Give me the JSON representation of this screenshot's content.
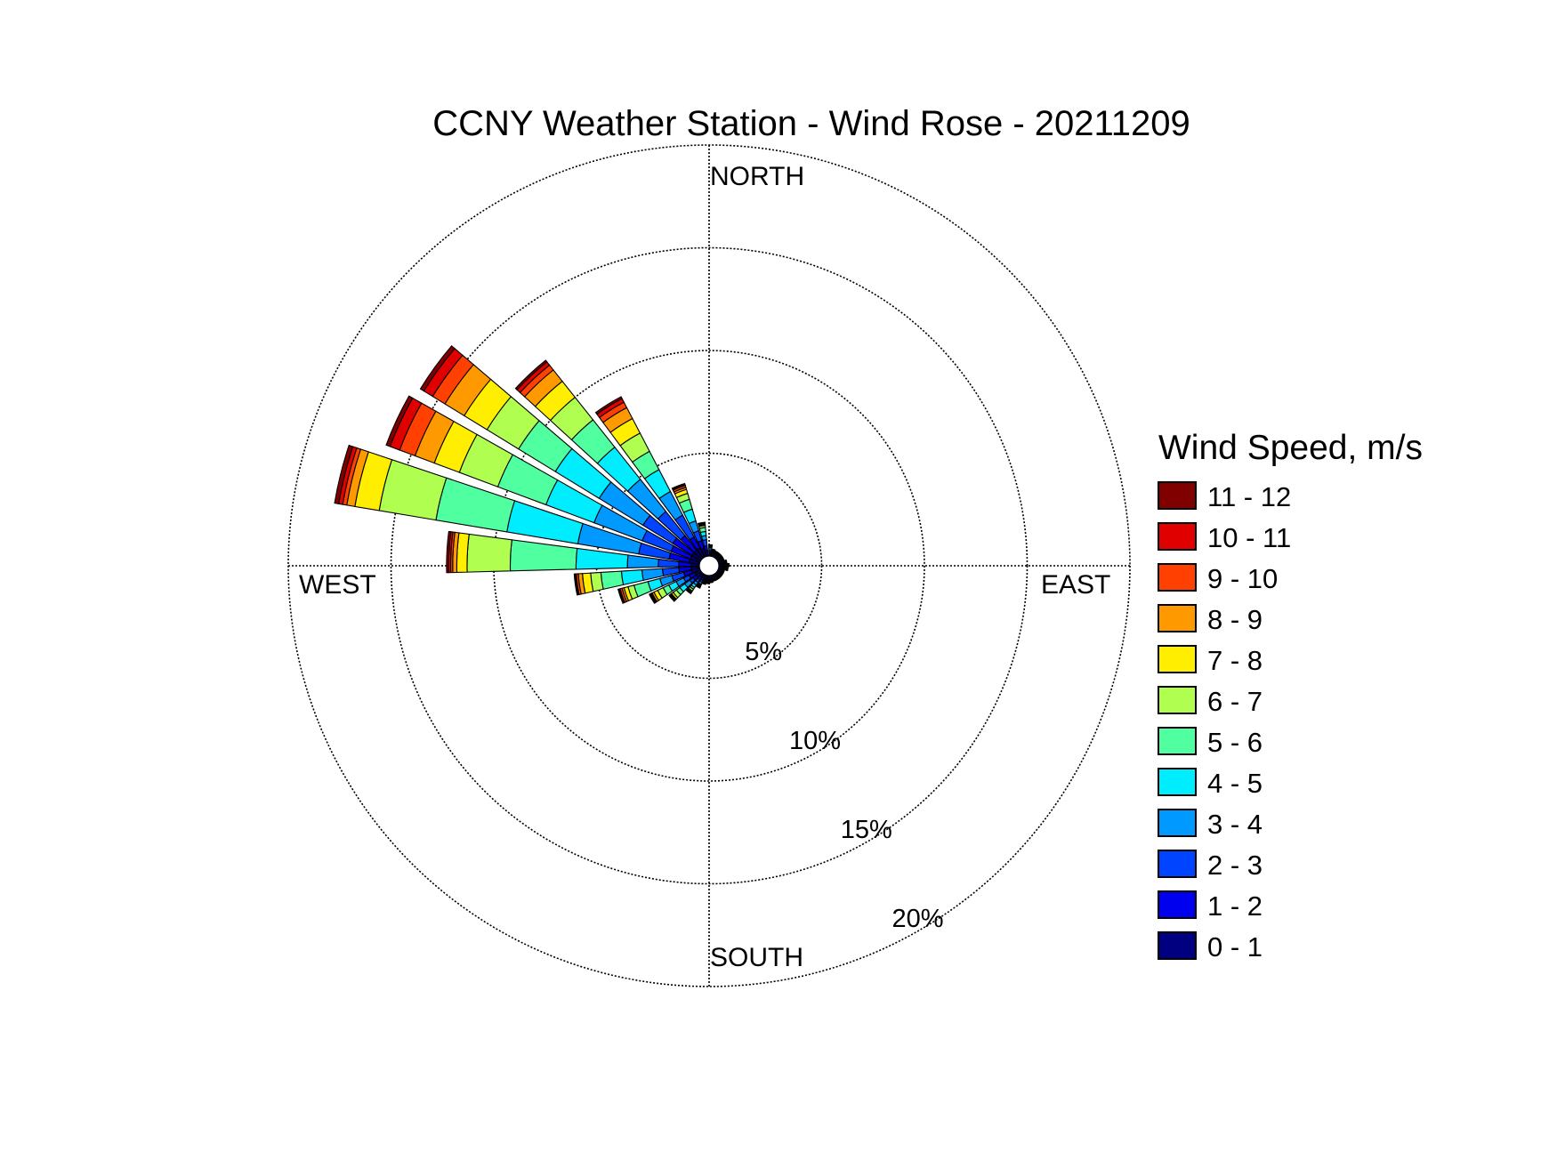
{
  "chart_data": {
    "type": "wind-rose",
    "title": "CCNY Weather Station - Wind Rose - 20211209",
    "directions": {
      "north": "NORTH",
      "south": "SOUTH",
      "east": "EAST",
      "west": "WEST"
    },
    "radial_unit": "percent of time",
    "rmax": 20,
    "rings": [
      {
        "value": 5,
        "label": "5%"
      },
      {
        "value": 10,
        "label": "10%"
      },
      {
        "value": 15,
        "label": "15%"
      },
      {
        "value": 20,
        "label": "20%"
      }
    ],
    "legend": {
      "title": "Wind Speed, m/s",
      "position": "right",
      "bins": [
        {
          "label": "11 - 12",
          "color": "#800000"
        },
        {
          "label": "10 - 11",
          "color": "#e00000"
        },
        {
          "label": "9 - 10",
          "color": "#ff4000"
        },
        {
          "label": "8 - 9",
          "color": "#ff9900"
        },
        {
          "label": "7 - 8",
          "color": "#ffee00"
        },
        {
          "label": "6 - 7",
          "color": "#b0ff50"
        },
        {
          "label": "5 - 6",
          "color": "#50ffa0"
        },
        {
          "label": "4 - 5",
          "color": "#00ecff"
        },
        {
          "label": "3 - 4",
          "color": "#0099ff"
        },
        {
          "label": "2 - 3",
          "color": "#0044ff"
        },
        {
          "label": "1 - 2",
          "color": "#0000ee"
        },
        {
          "label": "0 - 1",
          "color": "#000080"
        }
      ]
    },
    "sector_width_deg": 9,
    "speed_bins_low_to_high": [
      "0 - 1",
      "1 - 2",
      "2 - 3",
      "3 - 4",
      "4 - 5",
      "5 - 6",
      "6 - 7",
      "7 - 8",
      "8 - 9",
      "9 - 10",
      "10 - 11",
      "11 - 12"
    ],
    "sectors": [
      {
        "direction_deg": 306,
        "cumulative_percent": [
          0.5,
          1.6,
          3.3,
          5.8,
          8.3,
          10.4,
          12.2,
          13.5,
          14.6,
          15.3,
          15.8,
          16.0
        ]
      },
      {
        "direction_deg": 295,
        "cumulative_percent": [
          0.5,
          1.5,
          3.0,
          5.5,
          8.0,
          10.5,
          12.5,
          13.8,
          14.8,
          15.6,
          16.1,
          16.3
        ]
      },
      {
        "direction_deg": 284,
        "cumulative_percent": [
          0.5,
          1.5,
          3.0,
          6.0,
          9.5,
          13.0,
          15.8,
          17.0,
          17.4,
          17.6,
          17.8,
          18.0
        ]
      },
      {
        "direction_deg": 273,
        "cumulative_percent": [
          0.4,
          1.0,
          2.0,
          3.5,
          6.0,
          9.2,
          11.3,
          11.8,
          12.0,
          12.1,
          12.2,
          12.3
        ]
      },
      {
        "direction_deg": 317,
        "cumulative_percent": [
          0.5,
          1.4,
          2.9,
          4.9,
          6.9,
          8.6,
          10.0,
          11.0,
          11.7,
          12.0,
          12.2,
          12.3
        ]
      },
      {
        "direction_deg": 328,
        "cumulative_percent": [
          0.5,
          1.1,
          2.3,
          3.6,
          4.8,
          5.8,
          6.8,
          7.6,
          8.2,
          8.5,
          8.7,
          8.8
        ]
      },
      {
        "direction_deg": 339,
        "cumulative_percent": [
          0.4,
          0.8,
          1.3,
          1.8,
          2.4,
          2.9,
          3.2,
          3.4,
          3.5,
          3.6,
          3.65,
          3.7
        ]
      },
      {
        "direction_deg": 350,
        "cumulative_percent": [
          0.3,
          0.5,
          0.8,
          1.0,
          1.2,
          1.4,
          1.5,
          1.55,
          1.6,
          1.62,
          1.64,
          1.65
        ]
      },
      {
        "direction_deg": 262,
        "cumulative_percent": [
          0.4,
          1.0,
          1.8,
          2.8,
          3.8,
          4.8,
          5.3,
          5.7,
          5.9,
          6.0,
          6.05,
          6.1
        ]
      },
      {
        "direction_deg": 251,
        "cumulative_percent": [
          0.4,
          0.8,
          1.4,
          2.0,
          2.6,
          3.3,
          3.6,
          3.8,
          3.9,
          4.0,
          4.05,
          4.1
        ]
      },
      {
        "direction_deg": 240,
        "cumulative_percent": [
          0.3,
          0.6,
          0.9,
          1.3,
          1.7,
          2.0,
          2.3,
          2.5,
          2.6,
          2.65,
          2.7,
          2.75
        ]
      },
      {
        "direction_deg": 229,
        "cumulative_percent": [
          0.3,
          0.5,
          0.7,
          1.0,
          1.3,
          1.5,
          1.7,
          1.8,
          1.85,
          1.9,
          1.93,
          1.95
        ]
      },
      {
        "direction_deg": 218,
        "cumulative_percent": [
          0.2,
          0.35,
          0.5,
          0.65,
          0.8,
          0.9,
          1.0,
          1.05,
          1.1,
          1.12,
          1.14,
          1.15
        ]
      },
      {
        "direction_deg": 207,
        "cumulative_percent": [
          0.2,
          0.3,
          0.4,
          0.5,
          0.55,
          0.6,
          0.62,
          0.64,
          0.66,
          0.68,
          0.69,
          0.7
        ]
      },
      {
        "direction_deg": 196,
        "cumulative_percent": [
          0.15,
          0.2,
          0.25,
          0.3,
          0.35,
          0.38,
          0.4,
          0.41,
          0.42,
          0.43,
          0.44,
          0.45
        ]
      },
      {
        "direction_deg": 184,
        "cumulative_percent": [
          0.15,
          0.2,
          0.25,
          0.3,
          0.32,
          0.34,
          0.36,
          0.37,
          0.38,
          0.39,
          0.4,
          0.4
        ]
      },
      {
        "direction_deg": 172,
        "cumulative_percent": [
          0.12,
          0.18,
          0.22,
          0.26,
          0.28,
          0.3,
          0.32,
          0.33,
          0.34,
          0.35,
          0.35,
          0.35
        ]
      },
      {
        "direction_deg": 160,
        "cumulative_percent": [
          0.12,
          0.16,
          0.2,
          0.22,
          0.25,
          0.27,
          0.28,
          0.29,
          0.3,
          0.3,
          0.3,
          0.3
        ]
      },
      {
        "direction_deg": 148,
        "cumulative_percent": [
          0.12,
          0.16,
          0.2,
          0.22,
          0.24,
          0.26,
          0.27,
          0.28,
          0.29,
          0.3,
          0.3,
          0.3
        ]
      },
      {
        "direction_deg": 136,
        "cumulative_percent": [
          0.12,
          0.16,
          0.2,
          0.22,
          0.24,
          0.26,
          0.27,
          0.28,
          0.29,
          0.3,
          0.3,
          0.3
        ]
      },
      {
        "direction_deg": 124,
        "cumulative_percent": [
          0.12,
          0.16,
          0.2,
          0.22,
          0.24,
          0.26,
          0.27,
          0.28,
          0.29,
          0.3,
          0.3,
          0.3
        ]
      },
      {
        "direction_deg": 112,
        "cumulative_percent": [
          0.12,
          0.16,
          0.2,
          0.22,
          0.24,
          0.26,
          0.27,
          0.28,
          0.29,
          0.3,
          0.3,
          0.3
        ]
      },
      {
        "direction_deg": 100,
        "cumulative_percent": [
          0.15,
          0.2,
          0.25,
          0.3,
          0.35,
          0.38,
          0.4,
          0.42,
          0.44,
          0.45,
          0.45,
          0.45
        ]
      },
      {
        "direction_deg": 88,
        "cumulative_percent": [
          0.15,
          0.2,
          0.25,
          0.3,
          0.35,
          0.4,
          0.45,
          0.48,
          0.5,
          0.5,
          0.5,
          0.5
        ]
      },
      {
        "direction_deg": 76,
        "cumulative_percent": [
          0.15,
          0.2,
          0.25,
          0.3,
          0.34,
          0.37,
          0.39,
          0.4,
          0.4,
          0.4,
          0.4,
          0.4
        ]
      },
      {
        "direction_deg": 64,
        "cumulative_percent": [
          0.12,
          0.16,
          0.2,
          0.22,
          0.25,
          0.27,
          0.28,
          0.29,
          0.3,
          0.3,
          0.3,
          0.3
        ]
      },
      {
        "direction_deg": 52,
        "cumulative_percent": [
          0.12,
          0.16,
          0.2,
          0.22,
          0.24,
          0.26,
          0.27,
          0.28,
          0.29,
          0.3,
          0.3,
          0.3
        ]
      },
      {
        "direction_deg": 40,
        "cumulative_percent": [
          0.12,
          0.16,
          0.2,
          0.22,
          0.24,
          0.26,
          0.27,
          0.28,
          0.29,
          0.3,
          0.3,
          0.3
        ]
      },
      {
        "direction_deg": 28,
        "cumulative_percent": [
          0.12,
          0.16,
          0.2,
          0.22,
          0.24,
          0.26,
          0.27,
          0.28,
          0.29,
          0.3,
          0.3,
          0.3
        ]
      },
      {
        "direction_deg": 16,
        "cumulative_percent": [
          0.15,
          0.2,
          0.25,
          0.28,
          0.3,
          0.32,
          0.33,
          0.34,
          0.35,
          0.35,
          0.35,
          0.35
        ]
      },
      {
        "direction_deg": 4,
        "cumulative_percent": [
          0.15,
          0.22,
          0.3,
          0.4,
          0.45,
          0.5,
          0.52,
          0.54,
          0.55,
          0.55,
          0.55,
          0.55
        ]
      }
    ]
  }
}
